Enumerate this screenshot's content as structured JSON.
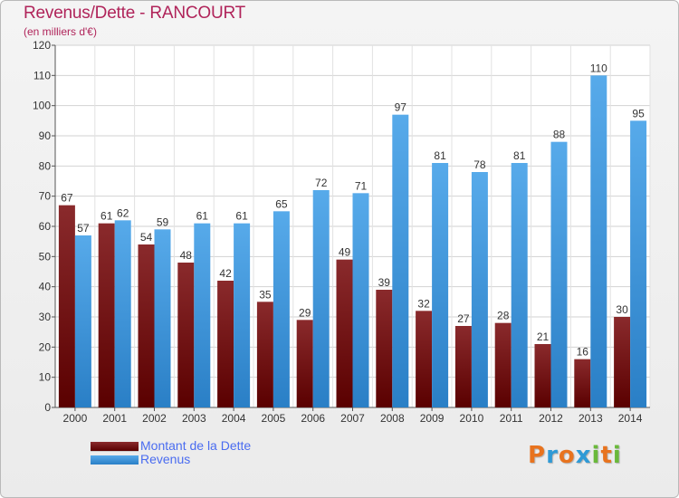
{
  "chart_data": {
    "type": "bar",
    "title": "Revenus/Dette - RANCOURT",
    "subtitle": "(en milliers d'€)",
    "categories": [
      "2000",
      "2001",
      "2002",
      "2003",
      "2004",
      "2005",
      "2006",
      "2007",
      "2008",
      "2009",
      "2010",
      "2011",
      "2012",
      "2013",
      "2014"
    ],
    "series": [
      {
        "name": "Montant de la Dette",
        "color": "#7a1416",
        "values": [
          67,
          61,
          54,
          48,
          42,
          35,
          29,
          49,
          39,
          32,
          27,
          28,
          21,
          16,
          30
        ]
      },
      {
        "name": "Revenus",
        "color": "#3f97dd",
        "values": [
          57,
          62,
          59,
          61,
          61,
          65,
          72,
          71,
          97,
          81,
          78,
          81,
          88,
          110,
          95
        ]
      }
    ],
    "ylim": [
      0,
      120
    ],
    "yticks": [
      0,
      10,
      20,
      30,
      40,
      50,
      60,
      70,
      80,
      90,
      100,
      110,
      120
    ],
    "grid": true,
    "legend": "bottom-left"
  },
  "logo": {
    "text": "Proxiti",
    "colors": [
      "#e8731e",
      "#2f9ad6",
      "#e8731e",
      "#2f9ad6",
      "#6ab93a",
      "#e8731e",
      "#6ab93a"
    ]
  }
}
